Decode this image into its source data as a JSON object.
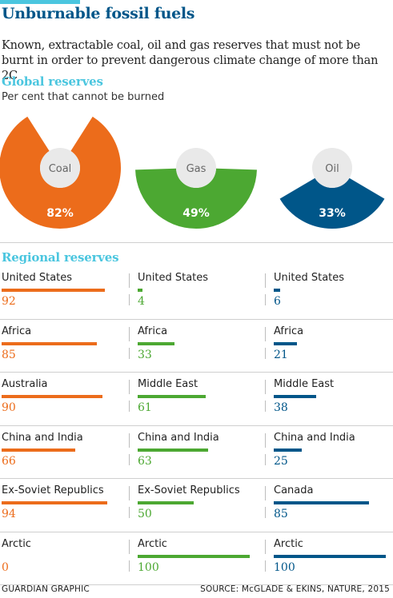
{
  "header": {
    "title": "Unburnable fossil fuels",
    "subtitle": "Known, extractable coal, oil and gas reserves that must not be burnt in order  to prevent dangerous climate change of more than 2C"
  },
  "global": {
    "heading": "Global reserves",
    "note": "Per cent that cannot be burned"
  },
  "regional": {
    "heading": "Regional reserves"
  },
  "footer": {
    "credit": "GUARDIAN GRAPHIC",
    "source": "SOURCE: McGLADE & EKINS, NATURE, 2015"
  },
  "colors": {
    "coal": "#ec6c1b",
    "gas": "#4ca832",
    "oil": "#005689",
    "accent": "#4bc6df"
  },
  "chart_data": [
    {
      "type": "pie",
      "title": "Global reserves",
      "subtitle": "Per cent that cannot be burned",
      "categories": [
        "Coal",
        "Gas",
        "Oil"
      ],
      "values": [
        82,
        49,
        33
      ],
      "value_labels": [
        "82%",
        "49%",
        "33%"
      ]
    },
    {
      "type": "bar",
      "title": "Regional reserves",
      "series": [
        {
          "name": "Coal",
          "categories": [
            "United States",
            "Africa",
            "Australia",
            "China and India",
            "Ex-Soviet Republics",
            "Arctic"
          ],
          "values": [
            92,
            85,
            90,
            66,
            94,
            0
          ]
        },
        {
          "name": "Gas",
          "categories": [
            "United States",
            "Africa",
            "Middle East",
            "China and India",
            "Ex-Soviet Republics",
            "Arctic"
          ],
          "values": [
            4,
            33,
            61,
            63,
            50,
            100
          ]
        },
        {
          "name": "Oil",
          "categories": [
            "United States",
            "Africa",
            "Middle East",
            "China and India",
            "Canada",
            "Arctic"
          ],
          "values": [
            6,
            21,
            38,
            25,
            85,
            100
          ]
        }
      ],
      "ylim": [
        0,
        100
      ]
    }
  ]
}
